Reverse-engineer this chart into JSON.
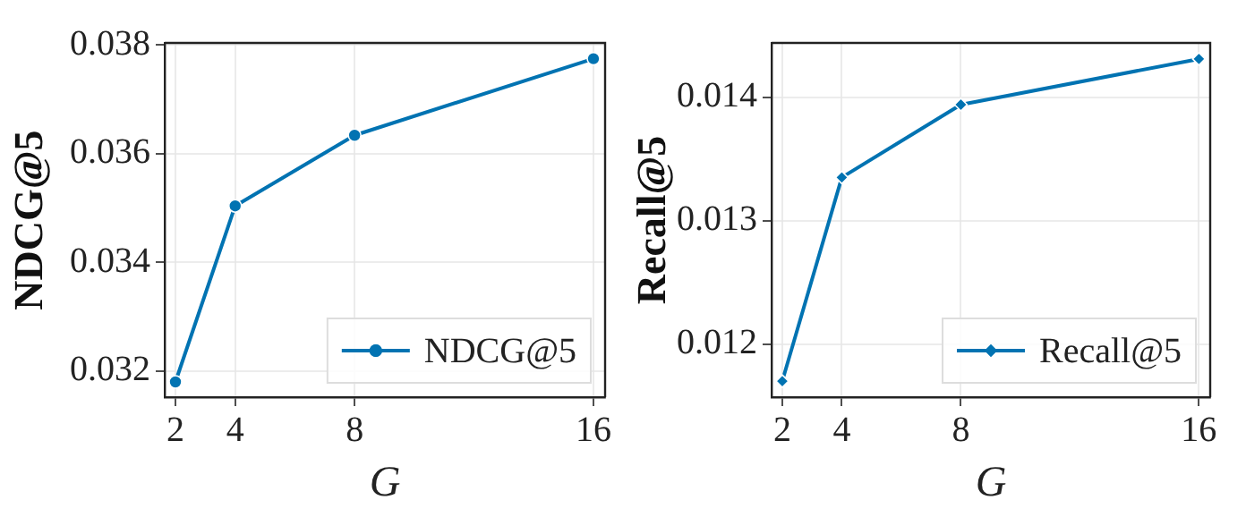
{
  "chart_data": [
    {
      "type": "line",
      "xlabel": "G",
      "ylabel": "NDCG@5",
      "x": [
        2,
        4,
        8,
        16
      ],
      "xlim": [
        1.64,
        16.39
      ],
      "xticks": [
        2,
        4,
        8,
        16
      ],
      "ylim": [
        0.03152,
        0.03804
      ],
      "yticks": [
        0.032,
        0.034,
        0.036,
        0.038
      ],
      "grid": true,
      "legend": "bottom right",
      "marker": "circle",
      "line_style": "solid",
      "series": [
        {
          "name": "NDCG@5",
          "color": "#0173b2",
          "values": [
            0.0318,
            0.03504,
            0.03634,
            0.03775
          ]
        }
      ]
    },
    {
      "type": "line",
      "xlabel": "G",
      "ylabel": "Recall@5",
      "x": [
        2,
        4,
        8,
        16
      ],
      "xlim": [
        1.64,
        16.38
      ],
      "xticks": [
        2,
        4,
        8,
        16
      ],
      "ylim": [
        0.01157,
        0.01444
      ],
      "yticks": [
        0.012,
        0.013,
        0.014
      ],
      "grid": true,
      "legend": "bottom right",
      "marker": "diamond",
      "line_style": "solid",
      "series": [
        {
          "name": "Recall@5",
          "color": "#0173b2",
          "values": [
            0.0117,
            0.01335,
            0.01394,
            0.01431
          ]
        }
      ]
    }
  ]
}
